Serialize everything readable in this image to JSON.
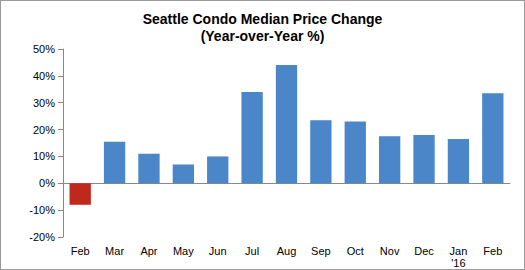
{
  "chart_data": {
    "type": "bar",
    "title": "Seattle Condo Median Price Change",
    "subtitle": "(Year-over-Year %)",
    "categories": [
      "Feb",
      "Mar",
      "Apr",
      "May",
      "Jun",
      "Jul",
      "Aug",
      "Sep",
      "Oct",
      "Nov",
      "Dec",
      "Jan\n'16",
      "Feb"
    ],
    "values": [
      -8,
      15.5,
      11,
      7,
      10,
      34,
      44,
      23.5,
      23,
      17.5,
      18,
      16.5,
      33.5
    ],
    "colors": [
      "#c0281c",
      "#4a86c8",
      "#4a86c8",
      "#4a86c8",
      "#4a86c8",
      "#4a86c8",
      "#4a86c8",
      "#4a86c8",
      "#4a86c8",
      "#4a86c8",
      "#4a86c8",
      "#4a86c8",
      "#4a86c8"
    ],
    "ylim": [
      -20,
      50
    ],
    "yticks": [
      {
        "value": -20,
        "label": "-20%"
      },
      {
        "value": -10,
        "label": "-10%"
      },
      {
        "value": 0,
        "label": "0%"
      },
      {
        "value": 10,
        "label": "10%"
      },
      {
        "value": 20,
        "label": "20%"
      },
      {
        "value": 30,
        "label": "30%"
      },
      {
        "value": 40,
        "label": "40%"
      },
      {
        "value": 50,
        "label": "50%"
      }
    ],
    "grid": false
  }
}
